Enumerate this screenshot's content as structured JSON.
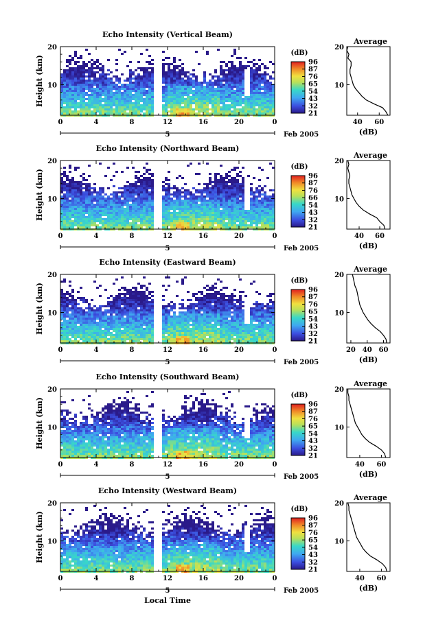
{
  "figure": {
    "x_title": "Local Time",
    "date_label": "Feb 2005",
    "day_marker": "5"
  },
  "chart_data": [
    {
      "type": "heatmap",
      "title": "Echo Intensity (Vertical Beam)",
      "ylabel": "Height (km)",
      "xlim": [
        0,
        24
      ],
      "x_ticks": [
        "0",
        "4",
        "8",
        "12",
        "16",
        "20",
        "0"
      ],
      "ylim": [
        2,
        20
      ],
      "y_ticks": [
        "20",
        "10"
      ],
      "colorbar": {
        "unit": "(dB)",
        "ticks": [
          "96",
          "87",
          "76",
          "65",
          "54",
          "43",
          "32",
          "21"
        ],
        "range": [
          21,
          96
        ]
      },
      "data_gap_hours": [
        10.6,
        11.4
      ],
      "notch_hour": 21,
      "profile": {
        "title": "Average",
        "xlabel": "(dB)",
        "x_ticks": [
          "40",
          "60"
        ],
        "xlim": [
          30,
          70
        ],
        "heights": [
          2,
          3,
          4,
          5,
          6,
          7,
          8,
          9,
          10,
          11,
          12,
          13,
          14,
          15,
          16,
          17,
          18,
          19,
          20
        ],
        "values": [
          68,
          66,
          63,
          55,
          48,
          44,
          41,
          38,
          36,
          35,
          34,
          33,
          33,
          34,
          34,
          31,
          32,
          30,
          31
        ]
      }
    },
    {
      "type": "heatmap",
      "title": "Echo Intensity (Northward Beam)",
      "ylabel": "Height (km)",
      "xlim": [
        0,
        24
      ],
      "x_ticks": [
        "0",
        "4",
        "8",
        "12",
        "16",
        "20",
        "0"
      ],
      "ylim": [
        2,
        20
      ],
      "y_ticks": [
        "20",
        "10"
      ],
      "colorbar": {
        "unit": "(dB)",
        "ticks": [
          "96",
          "87",
          "76",
          "66",
          "54",
          "43",
          "32",
          "21"
        ],
        "range": [
          21,
          96
        ]
      },
      "data_gap_hours": [
        10.6,
        11.4
      ],
      "notch_hour": 21,
      "profile": {
        "title": "Average",
        "xlabel": "(dB)",
        "x_ticks": [
          "40",
          "60"
        ],
        "xlim": [
          28,
          70
        ],
        "heights": [
          2,
          3,
          4,
          5,
          6,
          7,
          8,
          9,
          10,
          11,
          12,
          13,
          14,
          15,
          16,
          17,
          18,
          19,
          20
        ],
        "values": [
          65,
          64,
          60,
          57,
          50,
          44,
          40,
          37,
          35,
          33,
          32,
          31,
          30,
          30,
          31,
          30,
          29,
          30,
          29
        ]
      }
    },
    {
      "type": "heatmap",
      "title": "Echo Intensity (Eastward Beam)",
      "ylabel": "Height (km)",
      "xlim": [
        0,
        24
      ],
      "x_ticks": [
        "0",
        "4",
        "8",
        "12",
        "16",
        "20",
        "0"
      ],
      "ylim": [
        2,
        20
      ],
      "y_ticks": [
        "20",
        "10"
      ],
      "colorbar": {
        "unit": "(dB)",
        "ticks": [
          "96",
          "87",
          "76",
          "65",
          "54",
          "43",
          "32",
          "21"
        ],
        "range": [
          21,
          96
        ]
      },
      "data_gap_hours": [
        10.6,
        11.4
      ],
      "notch_hour": 21,
      "profile": {
        "title": "Average",
        "xlabel": "(dB)",
        "x_ticks": [
          "20",
          "40",
          "60"
        ],
        "xlim": [
          15,
          68
        ],
        "heights": [
          2,
          3,
          4,
          5,
          6,
          7,
          8,
          9,
          10,
          11,
          12,
          13,
          14,
          15,
          16,
          17,
          18,
          19,
          20
        ],
        "values": [
          64,
          63,
          60,
          56,
          50,
          45,
          41,
          38,
          35,
          33,
          31,
          30,
          29,
          28,
          27,
          25,
          24,
          23,
          22
        ]
      }
    },
    {
      "type": "heatmap",
      "title": "Echo Intensity (Southward Beam)",
      "ylabel": "Height (km)",
      "xlim": [
        0,
        24
      ],
      "x_ticks": [
        "0",
        "4",
        "8",
        "12",
        "16",
        "20",
        "0"
      ],
      "ylim": [
        2,
        20
      ],
      "y_ticks": [
        "20",
        "10"
      ],
      "colorbar": {
        "unit": "(dB)",
        "ticks": [
          "96",
          "87",
          "76",
          "65",
          "54",
          "43",
          "32",
          "21"
        ],
        "range": [
          21,
          96
        ]
      },
      "data_gap_hours": [
        10.6,
        11.4
      ],
      "notch_hour": 21,
      "profile": {
        "title": "Average",
        "xlabel": "(dB)",
        "x_ticks": [
          "40",
          "60"
        ],
        "xlim": [
          28,
          68
        ],
        "heights": [
          2,
          3,
          4,
          5,
          6,
          7,
          8,
          9,
          10,
          11,
          12,
          13,
          14,
          15,
          16,
          17,
          18,
          19,
          20
        ],
        "values": [
          64,
          63,
          60,
          55,
          49,
          45,
          42,
          40,
          38,
          36,
          35,
          34,
          33,
          32,
          31,
          30,
          30,
          29,
          29
        ]
      }
    },
    {
      "type": "heatmap",
      "title": "Echo Intensity (Westward Beam)",
      "ylabel": "Height (km)",
      "xlim": [
        0,
        24
      ],
      "x_ticks": [
        "0",
        "4",
        "8",
        "12",
        "16",
        "20",
        "0"
      ],
      "ylim": [
        2,
        20
      ],
      "y_ticks": [
        "20",
        "10"
      ],
      "colorbar": {
        "unit": "(dB)",
        "ticks": [
          "96",
          "87",
          "76",
          "65",
          "54",
          "43",
          "32",
          "21"
        ],
        "range": [
          21,
          96
        ]
      },
      "data_gap_hours": [
        10.6,
        11.4
      ],
      "notch_hour": 21,
      "profile": {
        "title": "Average",
        "xlabel": "(dB)",
        "x_ticks": [
          "40",
          "60"
        ],
        "xlim": [
          28,
          68
        ],
        "heights": [
          2,
          3,
          4,
          5,
          6,
          7,
          8,
          9,
          10,
          11,
          12,
          13,
          14,
          15,
          16,
          17,
          18,
          19,
          20
        ],
        "values": [
          65,
          64,
          61,
          56,
          50,
          46,
          43,
          41,
          39,
          37,
          36,
          35,
          34,
          33,
          32,
          31,
          30,
          30,
          29
        ]
      }
    }
  ]
}
